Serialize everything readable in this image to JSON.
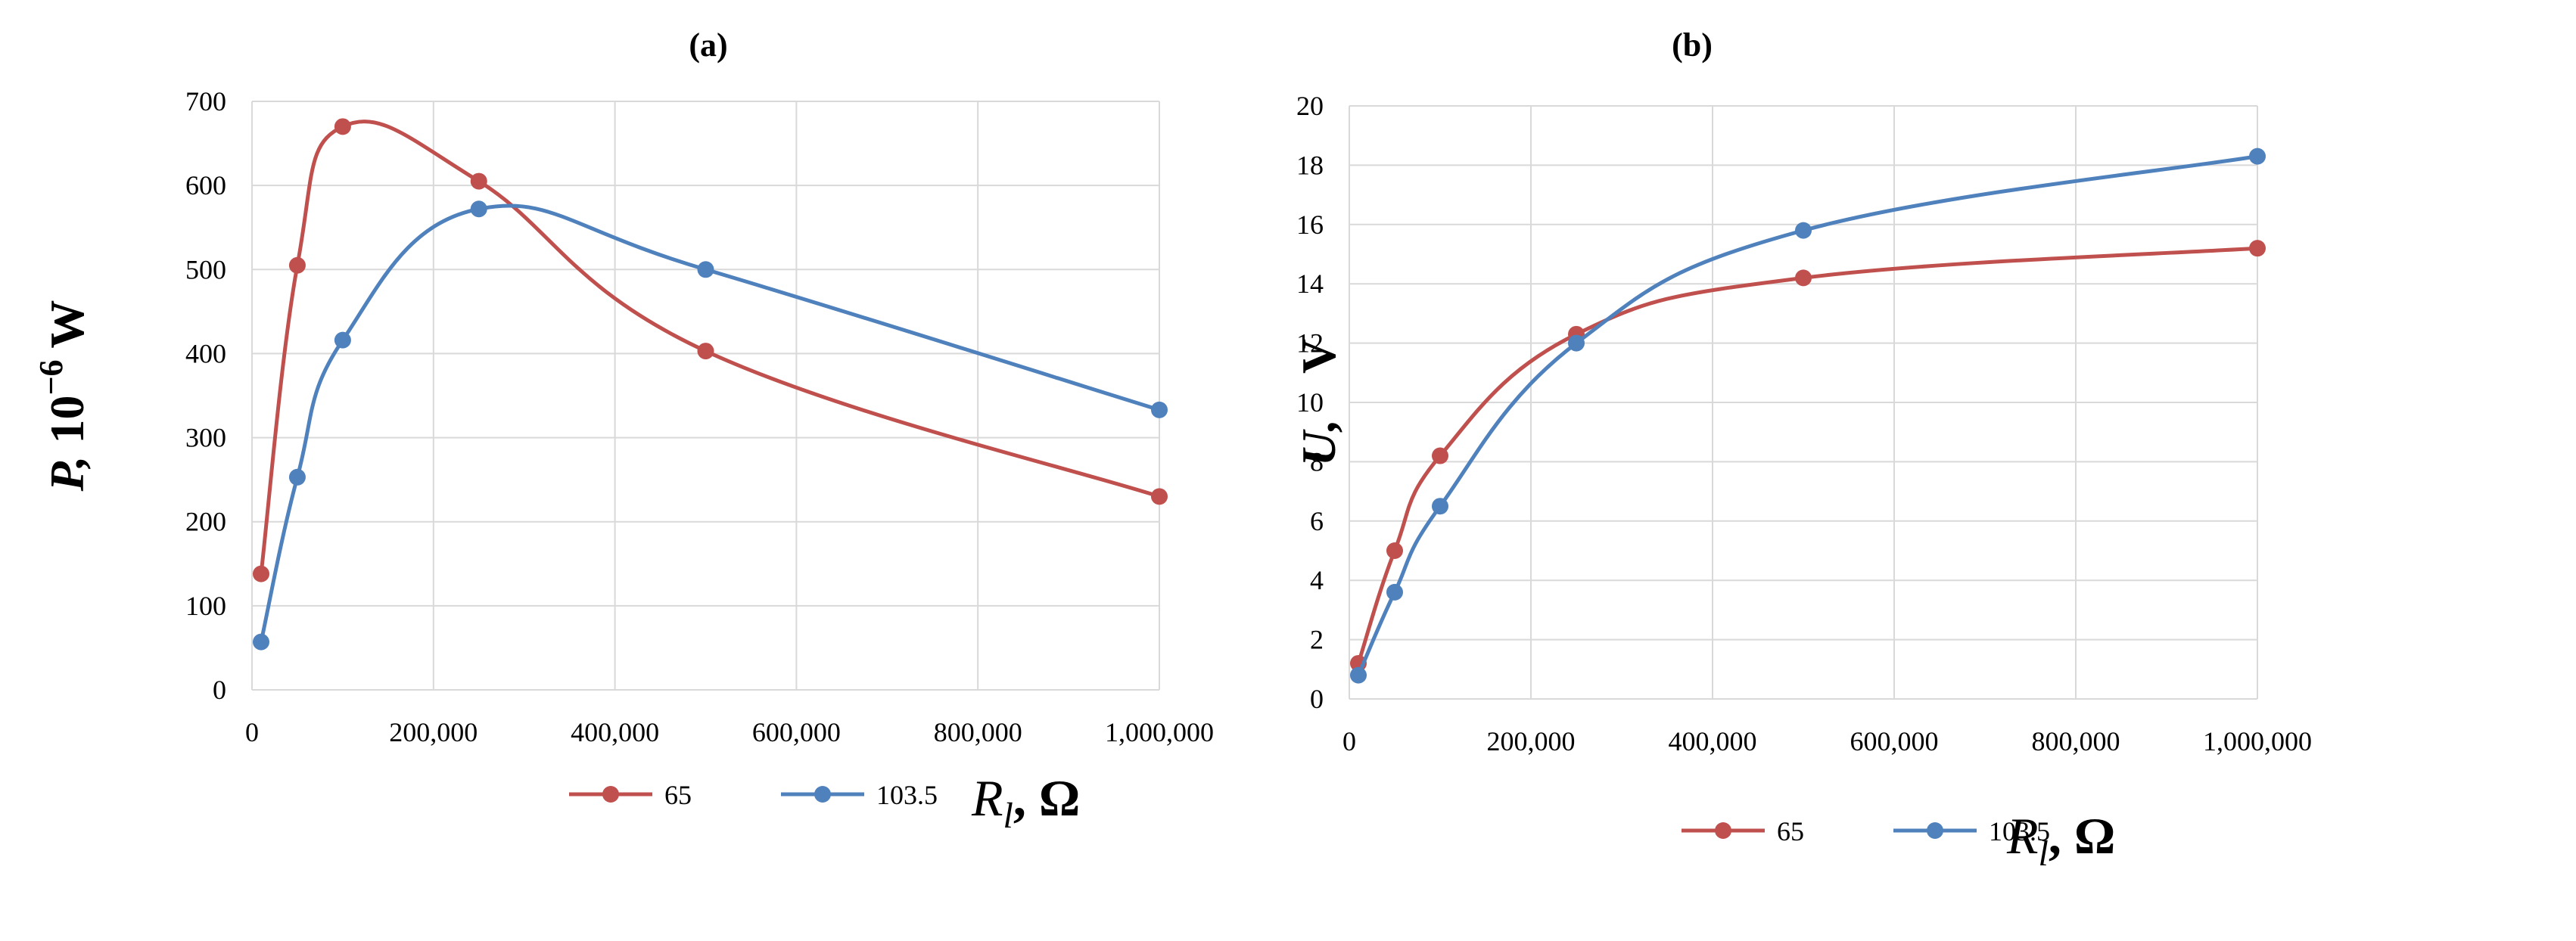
{
  "chart_data": [
    {
      "type": "line",
      "panel_label": "(a)",
      "ylabel_var": "P,",
      "ylabel_unit": " 10",
      "ylabel_exp": "−6",
      "ylabel_unit2": " W",
      "xlabel_var": "R",
      "xlabel_sub": "l",
      "xlabel_unit": ", Ω",
      "xlim": [
        0,
        1000000
      ],
      "ylim": [
        0,
        700
      ],
      "xticks": [
        0,
        200000,
        400000,
        600000,
        800000,
        1000000
      ],
      "xtick_labels": [
        "0",
        "200,000",
        "400,000",
        "600,000",
        "800,000",
        "1,000,000"
      ],
      "yticks": [
        0,
        100,
        200,
        300,
        400,
        500,
        600,
        700
      ],
      "ytick_labels": [
        "0",
        "100",
        "200",
        "300",
        "400",
        "500",
        "600",
        "700"
      ],
      "grid": true,
      "legend_position": "bottom",
      "series": [
        {
          "name": "65",
          "color": "#c0504d",
          "x": [
            10000,
            50000,
            100000,
            250000,
            500000,
            1000000
          ],
          "y": [
            138,
            505,
            670,
            605,
            403,
            230
          ]
        },
        {
          "name": "103.5",
          "color": "#4f81bd",
          "x": [
            10000,
            50000,
            100000,
            250000,
            500000,
            1000000
          ],
          "y": [
            57,
            253,
            416,
            572,
            500,
            333
          ]
        }
      ]
    },
    {
      "type": "line",
      "panel_label": "(b)",
      "ylabel_var": "U,",
      "ylabel_unit": "V",
      "xlabel_var": "R",
      "xlabel_sub": "l",
      "xlabel_unit": ", Ω",
      "xlim": [
        0,
        1000000
      ],
      "ylim": [
        0,
        20
      ],
      "xticks": [
        0,
        200000,
        400000,
        600000,
        800000,
        1000000
      ],
      "xtick_labels": [
        "0",
        "200,000",
        "400,000",
        "600,000",
        "800,000",
        "1,000,000"
      ],
      "yticks": [
        0,
        2,
        4,
        6,
        8,
        10,
        12,
        14,
        16,
        18,
        20
      ],
      "ytick_labels": [
        "0",
        "2",
        "4",
        "6",
        "8",
        "10",
        "12",
        "14",
        "16",
        "18",
        "20"
      ],
      "grid": true,
      "legend_position": "bottom",
      "series": [
        {
          "name": "65",
          "color": "#c0504d",
          "x": [
            10000,
            50000,
            100000,
            250000,
            500000,
            1000000
          ],
          "y": [
            1.2,
            5.0,
            8.2,
            12.3,
            14.2,
            15.2
          ]
        },
        {
          "name": "103.5",
          "color": "#4f81bd",
          "x": [
            10000,
            50000,
            100000,
            250000,
            500000,
            1000000
          ],
          "y": [
            0.8,
            3.6,
            6.5,
            12.0,
            15.8,
            18.3
          ]
        }
      ]
    }
  ]
}
